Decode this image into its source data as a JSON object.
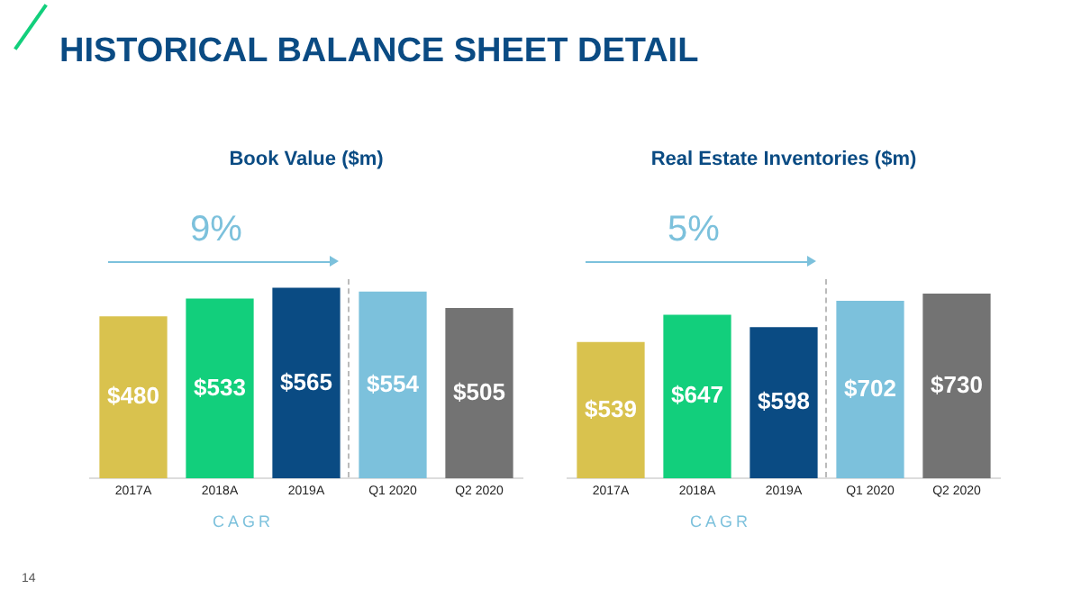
{
  "chart_data": [
    {
      "type": "other",
      "title": "HISTORICAL BALANCE SHEET DETAIL",
      "annotations": [
        "14"
      ]
    },
    {
      "type": "bar",
      "title": "Book Value ($m)",
      "categories": [
        "2017A",
        "2018A",
        "2019A",
        "Q1 2020",
        "Q2 2020"
      ],
      "values": [
        480,
        533,
        565,
        554,
        505
      ],
      "colors": [
        "#d9c24e",
        "#12cf7c",
        "#0a4b83",
        "#7cc1dc",
        "#737373"
      ],
      "value_labels": [
        "$480",
        "$533",
        "$565",
        "$554",
        "$505"
      ],
      "tick_labels": "x",
      "annotations": [
        "9%",
        "CAGR"
      ]
    },
    {
      "type": "bar",
      "title": "Real Estate Inventories ($m)",
      "categories": [
        "2017A",
        "2018A",
        "2019A",
        "Q1 2020",
        "Q2 2020"
      ],
      "values": [
        539,
        647,
        598,
        702,
        730
      ],
      "colors": [
        "#d9c24e",
        "#12cf7c",
        "#0a4b83",
        "#7cc1dc",
        "#737373"
      ],
      "value_labels": [
        "$539",
        "$647",
        "$598",
        "$702",
        "$730"
      ],
      "tick_labels": "x",
      "annotations": [
        "5%",
        "CAGR"
      ]
    }
  ]
}
